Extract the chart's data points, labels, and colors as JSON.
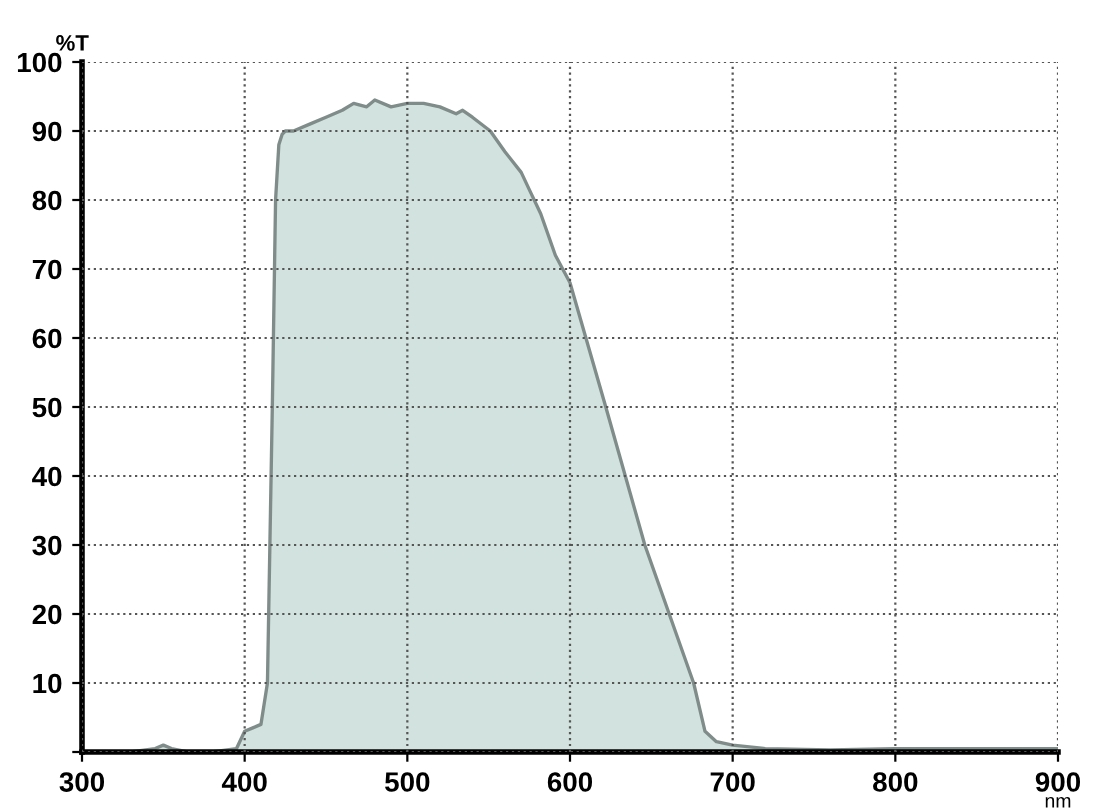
{
  "chart_data": {
    "type": "area",
    "ylabel": "%T",
    "xlabel": "nm",
    "x": [
      300,
      330,
      345,
      350,
      355,
      365,
      380,
      395,
      400,
      405,
      410,
      414,
      417,
      419,
      421,
      423,
      425,
      430,
      440,
      450,
      460,
      467,
      475,
      480,
      490,
      500,
      510,
      520,
      530,
      534,
      540,
      551,
      560,
      570,
      576,
      582,
      591,
      600,
      622,
      646,
      676,
      683,
      690,
      700,
      720,
      760,
      800,
      850,
      900
    ],
    "series": [
      {
        "color": "#7f8c8a",
        "values": [
          0,
          0,
          0.5,
          1,
          0.5,
          0,
          0,
          0.5,
          3,
          3.5,
          4,
          10,
          50,
          80,
          88,
          89.5,
          90,
          90,
          91,
          92,
          93,
          94,
          93.5,
          94.5,
          93.5,
          94,
          94,
          93.5,
          92.5,
          93,
          92,
          90,
          87,
          84,
          81,
          78,
          72,
          68,
          50,
          30,
          10,
          3,
          1.5,
          1,
          0.5,
          0.3,
          0.5,
          0.5,
          0.5
        ]
      }
    ],
    "xlim": [
      300,
      900
    ],
    "ylim": [
      0,
      100
    ],
    "xticks": [
      300,
      400,
      500,
      600,
      700,
      800,
      900
    ],
    "yticks": [
      {
        "value": 0,
        "label": null
      },
      10,
      20,
      30,
      40,
      50,
      60,
      70,
      80,
      90,
      100
    ],
    "grid": true
  }
}
